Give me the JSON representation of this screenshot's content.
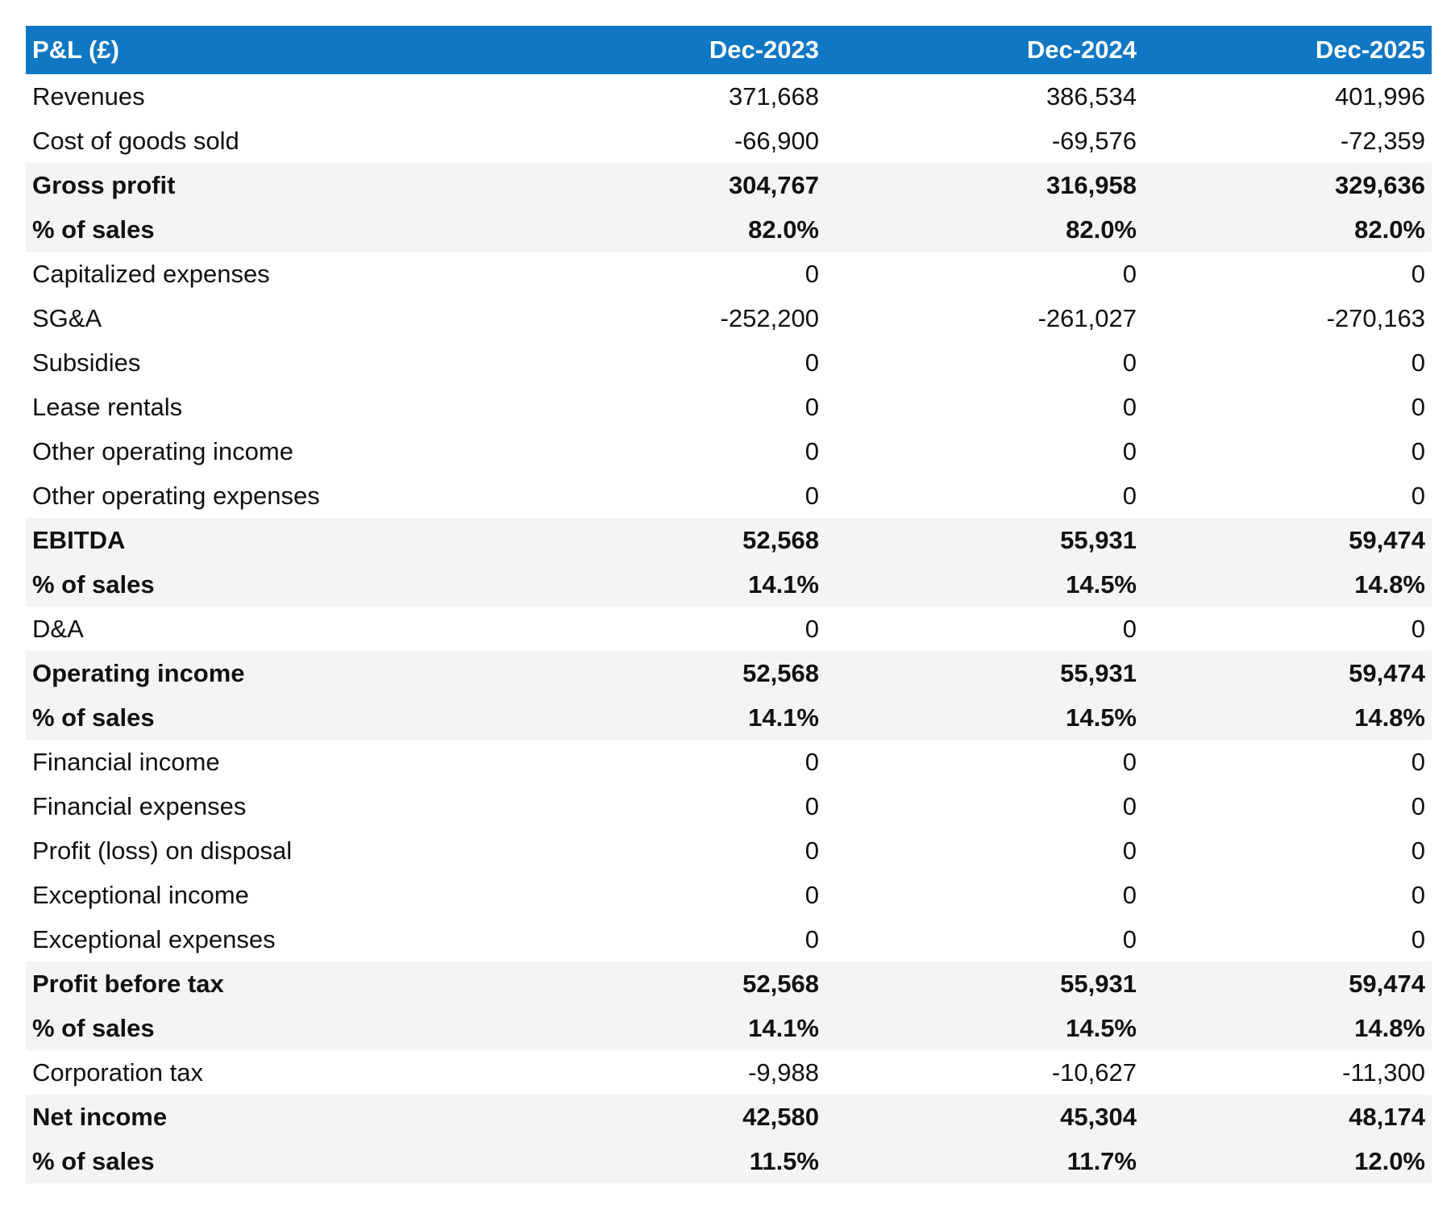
{
  "table": {
    "header": {
      "label": "P&L (£)",
      "periods": [
        "Dec-2023",
        "Dec-2024",
        "Dec-2025"
      ]
    },
    "rows": [
      {
        "label": "Revenues",
        "values": [
          "371,668",
          "386,534",
          "401,996"
        ],
        "bold": false,
        "shaded": false
      },
      {
        "label": "Cost of goods sold",
        "values": [
          "-66,900",
          "-69,576",
          "-72,359"
        ],
        "bold": false,
        "shaded": false
      },
      {
        "label": "Gross profit",
        "values": [
          "304,767",
          "316,958",
          "329,636"
        ],
        "bold": true,
        "shaded": true
      },
      {
        "label": "% of sales",
        "values": [
          "82.0%",
          "82.0%",
          "82.0%"
        ],
        "bold": true,
        "shaded": true
      },
      {
        "label": "Capitalized expenses",
        "values": [
          "0",
          "0",
          "0"
        ],
        "bold": false,
        "shaded": false
      },
      {
        "label": "SG&A",
        "values": [
          "-252,200",
          "-261,027",
          "-270,163"
        ],
        "bold": false,
        "shaded": false
      },
      {
        "label": "Subsidies",
        "values": [
          "0",
          "0",
          "0"
        ],
        "bold": false,
        "shaded": false
      },
      {
        "label": "Lease rentals",
        "values": [
          "0",
          "0",
          "0"
        ],
        "bold": false,
        "shaded": false
      },
      {
        "label": "Other operating income",
        "values": [
          "0",
          "0",
          "0"
        ],
        "bold": false,
        "shaded": false
      },
      {
        "label": "Other operating expenses",
        "values": [
          "0",
          "0",
          "0"
        ],
        "bold": false,
        "shaded": false
      },
      {
        "label": "EBITDA",
        "values": [
          "52,568",
          "55,931",
          "59,474"
        ],
        "bold": true,
        "shaded": true
      },
      {
        "label": "% of sales",
        "values": [
          "14.1%",
          "14.5%",
          "14.8%"
        ],
        "bold": true,
        "shaded": true
      },
      {
        "label": "D&A",
        "values": [
          "0",
          "0",
          "0"
        ],
        "bold": false,
        "shaded": false
      },
      {
        "label": "Operating income",
        "values": [
          "52,568",
          "55,931",
          "59,474"
        ],
        "bold": true,
        "shaded": true
      },
      {
        "label": "% of sales",
        "values": [
          "14.1%",
          "14.5%",
          "14.8%"
        ],
        "bold": true,
        "shaded": true
      },
      {
        "label": "Financial income",
        "values": [
          "0",
          "0",
          "0"
        ],
        "bold": false,
        "shaded": false
      },
      {
        "label": "Financial expenses",
        "values": [
          "0",
          "0",
          "0"
        ],
        "bold": false,
        "shaded": false
      },
      {
        "label": "Profit (loss) on disposal",
        "values": [
          "0",
          "0",
          "0"
        ],
        "bold": false,
        "shaded": false
      },
      {
        "label": "Exceptional income",
        "values": [
          "0",
          "0",
          "0"
        ],
        "bold": false,
        "shaded": false
      },
      {
        "label": "Exceptional expenses",
        "values": [
          "0",
          "0",
          "0"
        ],
        "bold": false,
        "shaded": false
      },
      {
        "label": "Profit before tax",
        "values": [
          "52,568",
          "55,931",
          "59,474"
        ],
        "bold": true,
        "shaded": true
      },
      {
        "label": "% of sales",
        "values": [
          "14.1%",
          "14.5%",
          "14.8%"
        ],
        "bold": true,
        "shaded": true
      },
      {
        "label": "Corporation tax",
        "values": [
          "-9,988",
          "-10,627",
          "-11,300"
        ],
        "bold": false,
        "shaded": false
      },
      {
        "label": "Net income",
        "values": [
          "42,580",
          "45,304",
          "48,174"
        ],
        "bold": true,
        "shaded": true
      },
      {
        "label": "% of sales",
        "values": [
          "11.5%",
          "11.7%",
          "12.0%"
        ],
        "bold": true,
        "shaded": true
      }
    ]
  },
  "colors": {
    "header_bg": "#0f77c4",
    "header_text": "#ffffff",
    "shade_bg": "#f4f4f4"
  }
}
